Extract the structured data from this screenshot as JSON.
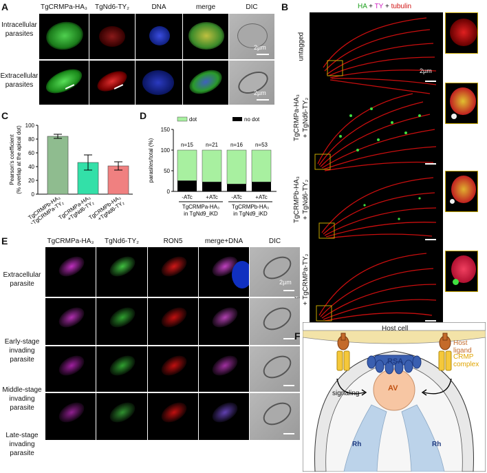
{
  "panel_labels": {
    "A": "A",
    "B": "B",
    "C": "C",
    "D": "D",
    "E": "E",
    "F": "F"
  },
  "panelA": {
    "columns": [
      "TgCRMPa-HA₃",
      "TgNd6-TY₂",
      "DNA",
      "merge",
      "DIC"
    ],
    "rows": [
      "Intracellular\nparasites",
      "Extracellular\nparasites"
    ],
    "scalebar": "2µm"
  },
  "panelB": {
    "legend": {
      "ha": "HA",
      "plus1": " + ",
      "ty": "TY",
      "plus2": " + ",
      "tub": "tubulin"
    },
    "rows": [
      "untagged",
      "TgCRMPa-HA₃\n+ TgNd6-TY₂",
      "TgCRMPb-HA₃\n+ TgNd6-TY₂",
      "TgCRMPb-HA₃\n+ TgCRMPa-TY₂"
    ],
    "scalebar": "2µm"
  },
  "chart_data": [
    {
      "type": "bar",
      "panel": "C",
      "ylabel": "Pearson's coefficient\n(% overlap at the apical dot)",
      "ylim": [
        0,
        100
      ],
      "yticks": [
        0,
        20,
        40,
        60,
        80,
        100
      ],
      "categories": [
        "TgCRMPb-HA₃\n+TgCRMPa-TY₂",
        "TgCRMPa-HA₃\n+TgNd6-TY₂",
        "TgCRMPb-HA₃\n+TgNd6-TY₂"
      ],
      "values": [
        84,
        46,
        41
      ],
      "errors": [
        3,
        11,
        6
      ],
      "colors": [
        "#8fbc8f",
        "#33e0a8",
        "#f08080"
      ]
    },
    {
      "type": "bar",
      "panel": "D",
      "ylabel": "parasites/total (%)",
      "ylim": [
        0,
        150
      ],
      "yticks": [
        0,
        50,
        100,
        150
      ],
      "categories": [
        "-ATc",
        "+ATc",
        "-ATc",
        "+ATc"
      ],
      "counts": [
        "n=15",
        "n=21",
        "n=16",
        "n=53"
      ],
      "series": [
        {
          "name": "no dot",
          "values": [
            26,
            23,
            18,
            23
          ],
          "color": "#000000"
        },
        {
          "name": "dot",
          "values": [
            74,
            77,
            82,
            77
          ],
          "color": "#a8f0a0"
        }
      ],
      "groups": [
        "TgCRMPa-HA₃\nin TgNd9_iKD",
        "TgCRMPb-HA₃\nin TgNd9_iKD"
      ]
    }
  ],
  "panelE": {
    "columns": [
      "TgCRMPa-HA₃",
      "TgNd6-TY₂",
      "RON5",
      "merge+DNA",
      "DIC"
    ],
    "rows": [
      "Extracellular\nparasite",
      "Early-stage\ninvading\nparasite",
      "Middle-stage\ninvading\nparasite",
      "Late-stage\ninvading\nparasite"
    ],
    "scalebar": "2µm"
  },
  "panelF": {
    "host_cell": "Host cell",
    "host_ligand": "Host ligand",
    "crmp": "CRMP\ncomplex",
    "rsa": "RSA",
    "av": "AV",
    "signaling": "signaling",
    "rh_left": "Rh",
    "rh_right": "Rh"
  }
}
